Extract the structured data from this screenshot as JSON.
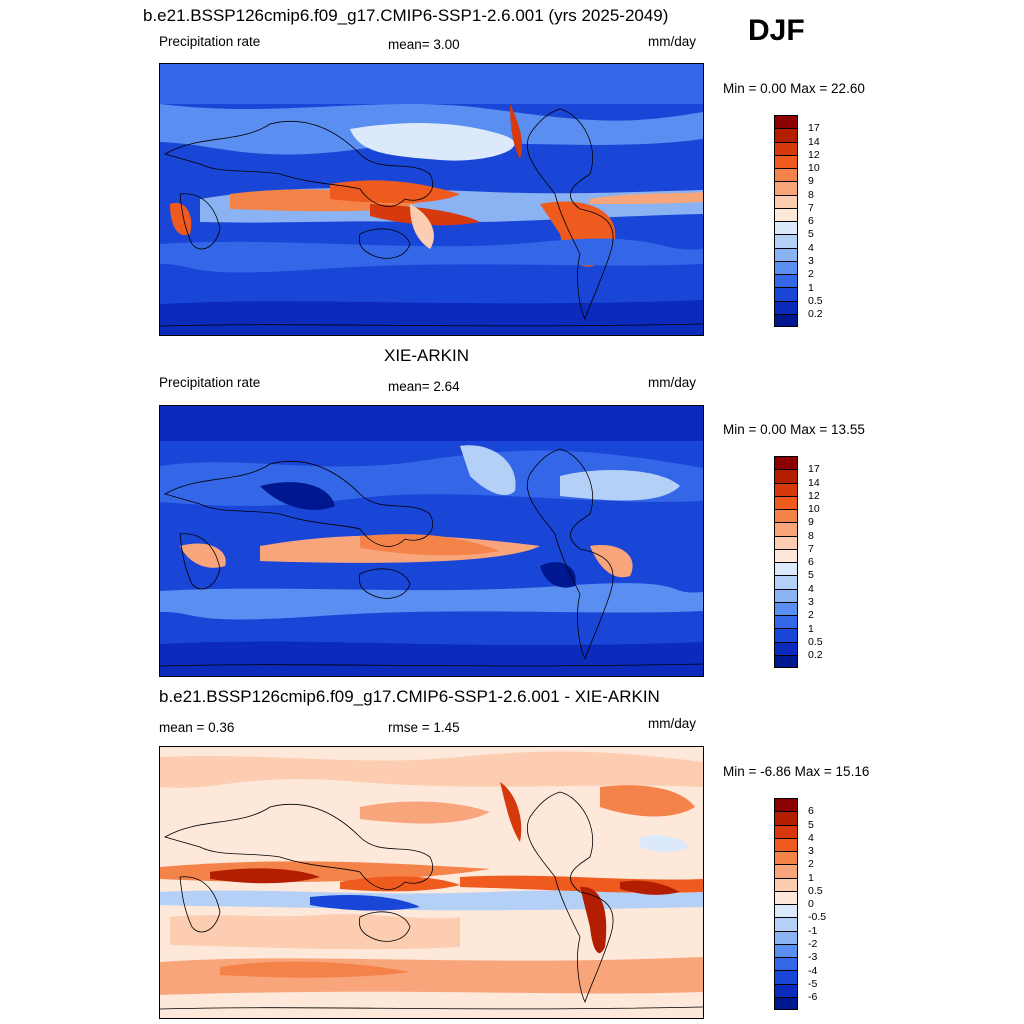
{
  "season": "DJF",
  "panels": [
    {
      "title": "b.e21.BSSP126cmip6.f09_g17.CMIP6-SSP1-2.6.001 (yrs 2025-2049)",
      "left_label": "Precipitation rate",
      "center_label": "mean=   3.00",
      "units": "mm/day",
      "minmax": "Min =   0.00 Max =  22.60",
      "colorbar": {
        "labels": [
          "17",
          "14",
          "12",
          "10",
          "9",
          "8",
          "7",
          "6",
          "5",
          "4",
          "3",
          "2",
          "1",
          "0.5",
          "0.2"
        ],
        "colors": [
          "#8b0000",
          "#b41e00",
          "#d63a0c",
          "#ef5a1e",
          "#f4834a",
          "#f9a57c",
          "#fccdb0",
          "#fde8da",
          "#dce9fb",
          "#b5d0f7",
          "#8bb2f2",
          "#5a8ef0",
          "#3467e8",
          "#1a46d8",
          "#0c2bbd",
          "#00188f"
        ]
      }
    },
    {
      "title": "XIE-ARKIN",
      "left_label": "Precipitation rate",
      "center_label": "mean=   2.64",
      "units": "mm/day",
      "minmax": "Min =   0.00 Max =  13.55",
      "colorbar": {
        "labels": [
          "17",
          "14",
          "12",
          "10",
          "9",
          "8",
          "7",
          "6",
          "5",
          "4",
          "3",
          "2",
          "1",
          "0.5",
          "0.2"
        ],
        "colors": [
          "#8b0000",
          "#b41e00",
          "#d63a0c",
          "#ef5a1e",
          "#f4834a",
          "#f9a57c",
          "#fccdb0",
          "#fde8da",
          "#dce9fb",
          "#b5d0f7",
          "#8bb2f2",
          "#5a8ef0",
          "#3467e8",
          "#1a46d8",
          "#0c2bbd",
          "#00188f"
        ]
      }
    },
    {
      "title": "b.e21.BSSP126cmip6.f09_g17.CMIP6-SSP1-2.6.001 - XIE-ARKIN",
      "left_label": "mean =   0.36",
      "center_label": "rmse =   1.45",
      "units": "mm/day",
      "minmax": "Min =  -6.86 Max =  15.16",
      "colorbar": {
        "labels": [
          "6",
          "5",
          "4",
          "3",
          "2",
          "1",
          "0.5",
          "0",
          "-0.5",
          "-1",
          "-2",
          "-3",
          "-4",
          "-5",
          "-6"
        ],
        "colors": [
          "#8b0000",
          "#b41e00",
          "#d63a0c",
          "#ef5a1e",
          "#f4834a",
          "#f9a57c",
          "#fccdb0",
          "#fde8da",
          "#dce9fb",
          "#b5d0f7",
          "#8bb2f2",
          "#5a8ef0",
          "#3467e8",
          "#1a46d8",
          "#0c2bbd",
          "#00188f"
        ]
      }
    }
  ]
}
